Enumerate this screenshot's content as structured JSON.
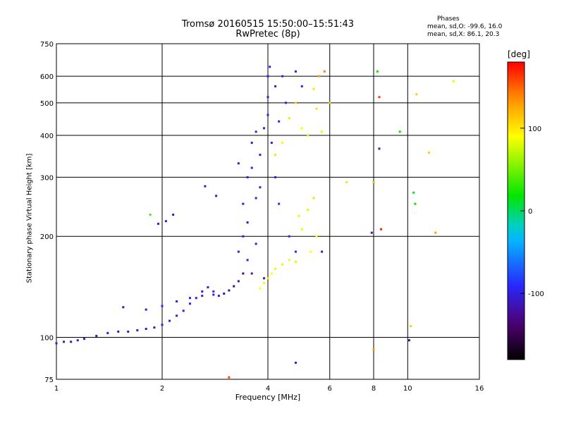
{
  "chart_data": {
    "type": "scatter",
    "title": "Tromsø 20160515 15:50:00–15:51:43",
    "subtitle": "RwPretec (8p)",
    "xlabel": "Frequency [MHz]",
    "ylabel": "Stationary phase Virtual Height [km]",
    "xscale": "log",
    "yscale": "log",
    "xlim": [
      1,
      16
    ],
    "ylim": [
      75,
      750
    ],
    "xticks": [
      1,
      2,
      4,
      6,
      8,
      10,
      16
    ],
    "yticks": [
      75,
      100,
      200,
      300,
      400,
      500,
      600,
      750
    ],
    "grid": true,
    "annotation": {
      "title": "Phases",
      "o_line": "mean, sd,O: -99.6, 16.0",
      "x_line": "mean, sd,X: 86.1, 20.3"
    },
    "colorbar": {
      "label": "[deg]",
      "range": [
        -180,
        180
      ],
      "ticks": [
        100,
        0,
        -100
      ],
      "position": "right"
    },
    "series": [
      {
        "points": [
          [
            1.0,
            96,
            -110
          ],
          [
            1.05,
            97,
            -110
          ],
          [
            1.1,
            97,
            -112
          ],
          [
            1.15,
            98,
            -108
          ],
          [
            1.2,
            99,
            -105
          ],
          [
            1.3,
            101,
            -108
          ],
          [
            1.4,
            103,
            -110
          ],
          [
            1.5,
            104,
            -108
          ],
          [
            1.6,
            104,
            -106
          ],
          [
            1.7,
            105,
            -110
          ],
          [
            1.8,
            106,
            -105
          ],
          [
            1.9,
            107,
            -108
          ],
          [
            2.0,
            109,
            -100
          ],
          [
            2.1,
            112,
            -102
          ],
          [
            2.2,
            116,
            -104
          ],
          [
            2.3,
            120,
            -100
          ],
          [
            2.4,
            126,
            -98
          ],
          [
            2.5,
            131,
            -100
          ],
          [
            2.6,
            137,
            -102
          ],
          [
            2.7,
            141,
            -105
          ],
          [
            2.8,
            134,
            -98
          ],
          [
            2.9,
            133,
            -100
          ],
          [
            3.0,
            135,
            -115
          ],
          [
            3.1,
            138,
            -120
          ],
          [
            3.2,
            142,
            -125
          ],
          [
            3.3,
            147,
            -118
          ],
          [
            3.4,
            155,
            -120
          ],
          [
            1.55,
            123,
            -110
          ],
          [
            1.8,
            121,
            -105
          ],
          [
            2.0,
            124,
            -100
          ],
          [
            2.2,
            128,
            -100
          ],
          [
            2.4,
            131,
            -98
          ],
          [
            2.6,
            133,
            -100
          ],
          [
            2.8,
            137,
            -96
          ],
          [
            1.85,
            232,
            40
          ],
          [
            1.95,
            218,
            -100
          ],
          [
            2.05,
            222,
            -105
          ],
          [
            2.15,
            232,
            -110
          ],
          [
            2.65,
            282,
            -110
          ],
          [
            2.85,
            264,
            -108
          ],
          [
            3.3,
            330,
            -100
          ],
          [
            3.3,
            180,
            -100
          ],
          [
            3.4,
            200,
            -100
          ],
          [
            3.4,
            250,
            -105
          ],
          [
            3.5,
            300,
            -100
          ],
          [
            3.5,
            220,
            -110
          ],
          [
            3.5,
            170,
            -100
          ],
          [
            3.6,
            320,
            -95
          ],
          [
            3.6,
            380,
            -100
          ],
          [
            3.6,
            155,
            -110
          ],
          [
            3.7,
            190,
            -95
          ],
          [
            3.7,
            260,
            -100
          ],
          [
            3.7,
            410,
            -98
          ],
          [
            3.8,
            350,
            -100
          ],
          [
            3.8,
            280,
            -100
          ],
          [
            3.9,
            420,
            -100
          ],
          [
            3.9,
            150,
            -105
          ],
          [
            4.0,
            460,
            -100
          ],
          [
            4.0,
            520,
            -102
          ],
          [
            4.0,
            600,
            -100
          ],
          [
            4.05,
            640,
            -98
          ],
          [
            4.1,
            380,
            -100
          ],
          [
            4.2,
            300,
            -100
          ],
          [
            4.2,
            560,
            -100
          ],
          [
            4.3,
            250,
            -90
          ],
          [
            4.3,
            440,
            -95
          ],
          [
            4.4,
            600,
            -98
          ],
          [
            4.5,
            500,
            -100
          ],
          [
            4.6,
            200,
            -90
          ],
          [
            4.8,
            620,
            -100
          ],
          [
            4.8,
            180,
            -90
          ],
          [
            5.0,
            560,
            -95
          ],
          [
            3.8,
            140,
            90
          ],
          [
            3.9,
            145,
            95
          ],
          [
            4.0,
            150,
            100
          ],
          [
            4.1,
            155,
            90
          ],
          [
            4.2,
            160,
            85
          ],
          [
            4.4,
            165,
            80
          ],
          [
            4.6,
            170,
            85
          ],
          [
            4.8,
            168,
            80
          ],
          [
            4.2,
            350,
            100
          ],
          [
            4.4,
            380,
            95
          ],
          [
            4.6,
            450,
            100
          ],
          [
            4.8,
            500,
            110
          ],
          [
            5.0,
            420,
            90
          ],
          [
            5.2,
            400,
            80
          ],
          [
            5.4,
            550,
            100
          ],
          [
            5.6,
            600,
            130
          ],
          [
            5.8,
            620,
            140
          ],
          [
            6.0,
            500,
            110
          ],
          [
            5.5,
            480,
            100
          ],
          [
            5.7,
            410,
            80
          ],
          [
            4.9,
            230,
            80
          ],
          [
            5.0,
            210,
            85
          ],
          [
            5.2,
            240,
            80
          ],
          [
            5.4,
            260,
            75
          ],
          [
            5.5,
            200,
            90
          ],
          [
            5.3,
            180,
            90
          ],
          [
            5.7,
            180,
            -110
          ],
          [
            8.0,
            290,
            120
          ],
          [
            8.2,
            620,
            20
          ],
          [
            8.3,
            520,
            160
          ],
          [
            8.3,
            365,
            -100
          ],
          [
            8.4,
            210,
            170
          ],
          [
            7.9,
            205,
            -110
          ],
          [
            8.0,
            92,
            130
          ],
          [
            9.5,
            410,
            20
          ],
          [
            10.4,
            270,
            10
          ],
          [
            10.5,
            250,
            20
          ],
          [
            10.2,
            108,
            110
          ],
          [
            10.1,
            98,
            -120
          ],
          [
            10.6,
            530,
            110
          ],
          [
            11.5,
            355,
            110
          ],
          [
            13.5,
            580,
            80
          ],
          [
            4.8,
            84,
            -100
          ],
          [
            6.7,
            290,
            100
          ],
          [
            12.0,
            205,
            130
          ],
          [
            3.1,
            76,
            160
          ]
        ]
      }
    ]
  }
}
